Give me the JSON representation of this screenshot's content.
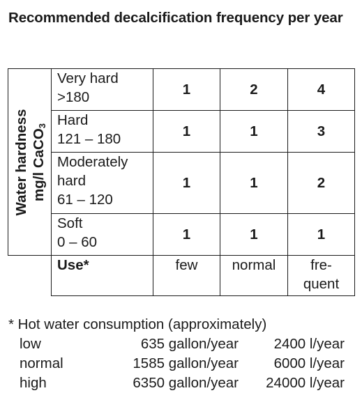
{
  "title": "Recommended decalcification frequency per year",
  "axis": {
    "line1": "Water hardness",
    "line2_prefix": "mg/l CaCO",
    "line2_sub": "3"
  },
  "rows": [
    {
      "label_lines": [
        "Very hard",
        ">180"
      ],
      "values": [
        "1",
        "2",
        "4"
      ]
    },
    {
      "label_lines": [
        "Hard",
        "121 – 180"
      ],
      "values": [
        "1",
        "1",
        "3"
      ]
    },
    {
      "label_lines": [
        "Moderately",
        "hard",
        "61 – 120"
      ],
      "values": [
        "1",
        "1",
        "2"
      ]
    },
    {
      "label_lines": [
        "Soft",
        "0 – 60"
      ],
      "values": [
        "1",
        "1",
        "1"
      ]
    }
  ],
  "use": {
    "label": "Use*",
    "columns": [
      {
        "lines": [
          "few"
        ]
      },
      {
        "lines": [
          "normal"
        ]
      },
      {
        "lines": [
          "fre-",
          "quent"
        ]
      }
    ]
  },
  "footnote": {
    "heading": "* Hot water consumption (approximately)",
    "rows": [
      {
        "name": "low",
        "gallons": "635 gallon/year",
        "liters": "2400 l/year"
      },
      {
        "name": "normal",
        "gallons": "1585 gallon/year",
        "liters": "6000 l/year"
      },
      {
        "name": "high",
        "gallons": "6350 gallon/year",
        "liters": "24000 l/year"
      }
    ]
  }
}
